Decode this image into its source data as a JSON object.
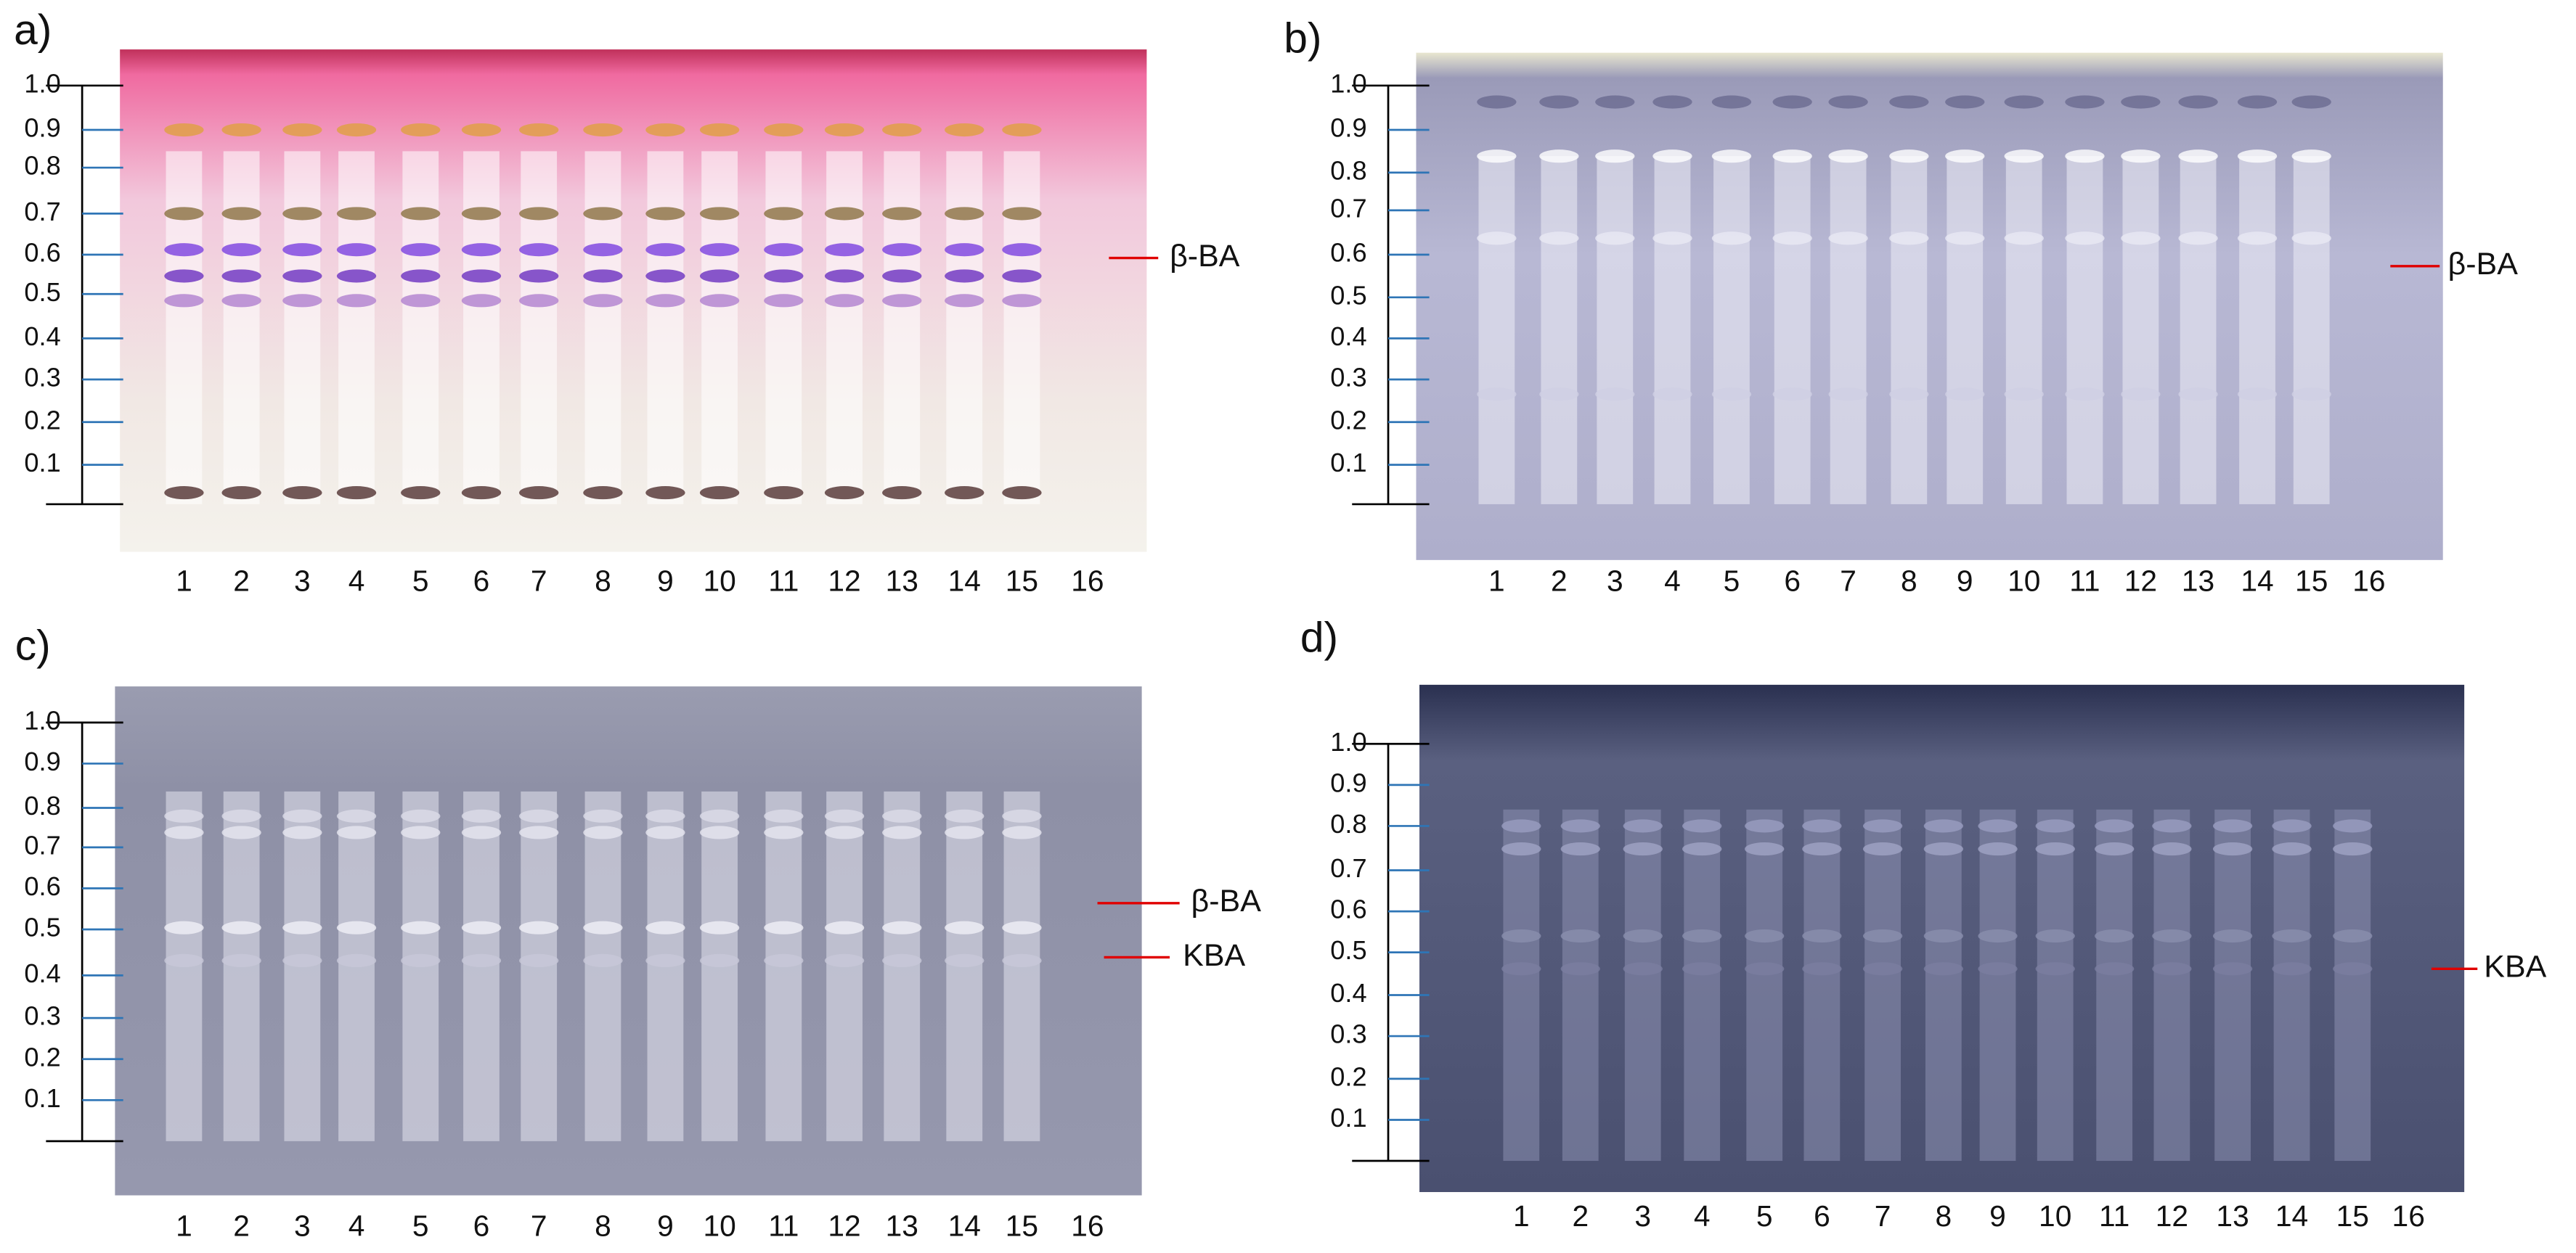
{
  "panels": [
    {
      "label": "a)",
      "axis_labels": [
        "1.0",
        "0.9",
        "0.8",
        "0.7",
        "0.6",
        "0.5",
        "0.4",
        "0.3",
        "0.2",
        "0.1"
      ],
      "lanes": [
        "1",
        "2",
        "3",
        "4",
        "5",
        "6",
        "7",
        "8",
        "9",
        "10",
        "11",
        "12",
        "13",
        "14",
        "15",
        "16"
      ],
      "markers": [
        "β-BA"
      ]
    },
    {
      "label": "b)",
      "axis_labels": [
        "1.0",
        "0.9",
        "0.8",
        "0.7",
        "0.6",
        "0.5",
        "0.4",
        "0.3",
        "0.2",
        "0.1"
      ],
      "lanes": [
        "1",
        "2",
        "3",
        "4",
        "5",
        "6",
        "7",
        "8",
        "9",
        "10",
        "11",
        "12",
        "13",
        "14",
        "15",
        "16"
      ],
      "markers": [
        "β-BA"
      ]
    },
    {
      "label": "c)",
      "axis_labels": [
        "1.0",
        "0.9",
        "0.8",
        "0.7",
        "0.6",
        "0.5",
        "0.4",
        "0.3",
        "0.2",
        "0.1"
      ],
      "lanes": [
        "1",
        "2",
        "3",
        "4",
        "5",
        "6",
        "7",
        "8",
        "9",
        "10",
        "11",
        "12",
        "13",
        "14",
        "15",
        "16"
      ],
      "markers": [
        "β-BA",
        "KBA"
      ]
    },
    {
      "label": "d)",
      "axis_labels": [
        "1.0",
        "0.9",
        "0.8",
        "0.7",
        "0.6",
        "0.5",
        "0.4",
        "0.3",
        "0.2",
        "0.1"
      ],
      "lanes": [
        "1",
        "2",
        "3",
        "4",
        "5",
        "6",
        "7",
        "8",
        "9",
        "10",
        "11",
        "12",
        "13",
        "14",
        "15",
        "16"
      ],
      "markers": [
        "KBA"
      ]
    }
  ]
}
